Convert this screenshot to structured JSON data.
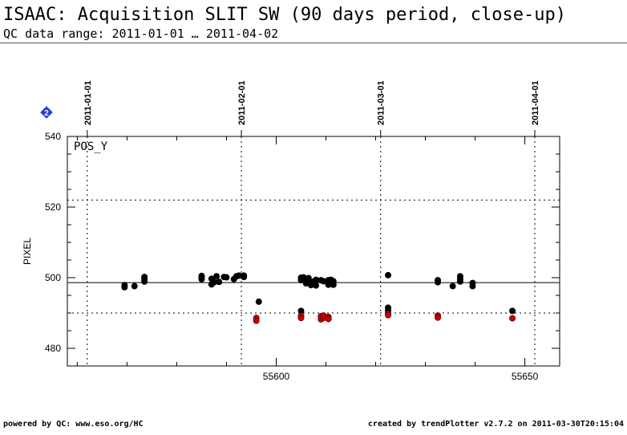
{
  "header": {
    "title": "ISAAC: Acquisition SLIT SW (90 days period, close-up)",
    "subtitle": "QC data range: 2011-01-01 … 2011-04-02"
  },
  "footer": {
    "left": "powered by QC: www.eso.org/HC",
    "right": "created by trendPlotter v2.7.2 on 2011-03-30T20:15:04"
  },
  "badge": {
    "text": "2",
    "color": "#1f3fd6"
  },
  "chart_data": {
    "type": "scatter",
    "panel_label": "POS_Y",
    "xlabel": "",
    "ylabel": "PIXEL",
    "xlim": [
      55558,
      55657
    ],
    "ylim": [
      475,
      540
    ],
    "x_ticks": [
      55600,
      55650
    ],
    "y_ticks": [
      480,
      500,
      520,
      540
    ],
    "date_markers": [
      {
        "x": 55562,
        "label": "2011-01-01"
      },
      {
        "x": 55593,
        "label": "2011-02-01"
      },
      {
        "x": 55621,
        "label": "2011-03-01"
      },
      {
        "x": 55652,
        "label": "2011-04-01"
      }
    ],
    "reference_lines": [
      {
        "y": 498.6,
        "style": "solid"
      },
      {
        "y": 522,
        "style": "dotted"
      },
      {
        "y": 490,
        "style": "dotted"
      }
    ],
    "grid": false,
    "series": [
      {
        "color": "#000000",
        "x": [
          55569.5,
          55569.5,
          55571.5,
          55573.5,
          55573.5,
          55573.5,
          55585.0,
          55585.0,
          55585.0,
          55587.0,
          55587.0,
          55587.5,
          55588.0,
          55588.5,
          55589.5,
          55590.0,
          55591.5,
          55592.0,
          55592.5,
          55593.5,
          55593.5,
          55596.5,
          55605.0,
          55605.0,
          55605.5,
          55605.5,
          55606.0,
          55606.5,
          55606.5,
          55607.0,
          55607.5,
          55608.0,
          55608.0,
          55609.0,
          55609.5,
          55610.5,
          55610.5,
          55611.0,
          55611.0,
          55611.5,
          55611.5,
          55622.5,
          55622.5,
          55622.5,
          55632.5,
          55632.5,
          55635.5,
          55637.0,
          55637.0,
          55637.0,
          55639.5,
          55639.5,
          55647.5,
          55605.0
        ],
        "y": [
          497.9,
          497.3,
          497.6,
          499.7,
          498.9,
          500.2,
          500.5,
          499.6,
          500.1,
          499.7,
          498.1,
          498.7,
          500.4,
          498.8,
          500.2,
          500.1,
          499.6,
          500.4,
          500.6,
          500.6,
          500.2,
          493.2,
          500.0,
          499.3,
          499.4,
          500.1,
          498.4,
          499.6,
          499.9,
          497.9,
          498.9,
          499.4,
          497.8,
          499.3,
          499.0,
          499.3,
          498.0,
          498.6,
          499.4,
          499.0,
          498.0,
          500.7,
          491.5,
          490.7,
          499.3,
          498.7,
          497.6,
          500.4,
          498.9,
          499.6,
          498.5,
          497.6,
          490.6,
          490.6
        ]
      },
      {
        "color": "#cc0000",
        "x": [
          55596.0,
          55596.0,
          55605.0,
          55605.0,
          55609.0,
          55609.0,
          55609.5,
          55609.5,
          55610.5,
          55610.5,
          55622.5,
          55622.5,
          55632.5,
          55632.5,
          55647.5
        ],
        "y": [
          488.6,
          487.8,
          489.2,
          488.6,
          489.1,
          488.2,
          488.6,
          489.3,
          488.9,
          488.3,
          489.8,
          489.4,
          489.3,
          488.7,
          488.5
        ]
      }
    ]
  }
}
